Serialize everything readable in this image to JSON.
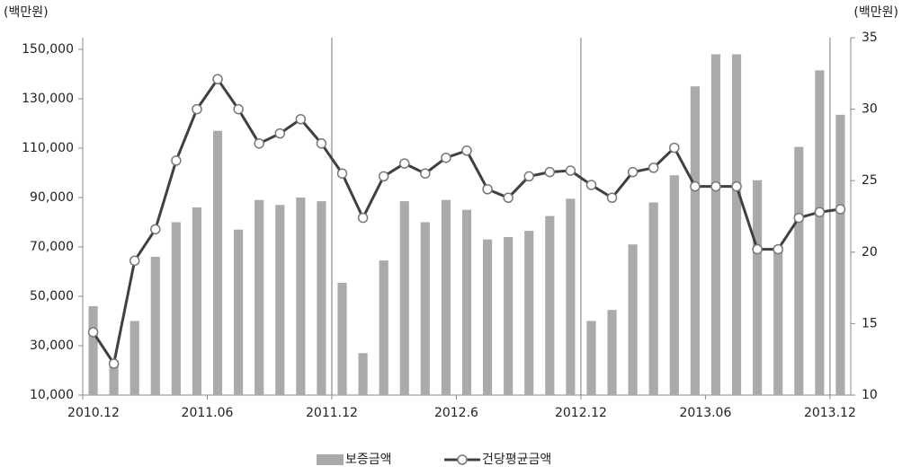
{
  "chart_data": {
    "type": "bar-line",
    "y_label": "(백만원)",
    "y2_label": "(백만원)",
    "categories": [
      "2010.12",
      null,
      null,
      null,
      null,
      null,
      "2011.06",
      null,
      null,
      null,
      null,
      null,
      "2011.12",
      null,
      null,
      null,
      null,
      null,
      "2012.6",
      null,
      null,
      null,
      null,
      null,
      "2012.12",
      null,
      null,
      null,
      null,
      null,
      "2013.06",
      null,
      null,
      null,
      null,
      null,
      "2013.12"
    ],
    "series": [
      {
        "name": "보증금액",
        "type": "bar",
        "color": "#aaaaaa",
        "values": [
          46000,
          24000,
          40000,
          66000,
          80000,
          86000,
          117000,
          77000,
          89000,
          87000,
          90000,
          88500,
          55500,
          27000,
          64500,
          88500,
          80000,
          89000,
          85000,
          73000,
          74000,
          76500,
          82500,
          89500,
          40000,
          44500,
          71000,
          88000,
          99000,
          135000,
          148000,
          148000,
          97000,
          68000,
          110500,
          141500,
          123500
        ]
      },
      {
        "name": "건당평균금액",
        "type": "line",
        "axis": "y2",
        "color": "#404040",
        "values": [
          14.4,
          12.2,
          19.4,
          21.6,
          26.4,
          30.0,
          32.1,
          30.0,
          27.6,
          28.3,
          29.3,
          27.6,
          25.5,
          22.4,
          25.3,
          26.2,
          25.5,
          26.6,
          27.1,
          24.4,
          23.8,
          25.3,
          25.6,
          25.7,
          24.7,
          23.8,
          25.6,
          25.9,
          27.3,
          24.6,
          24.6,
          24.6,
          20.2,
          20.2,
          22.4,
          22.8,
          23.0
        ]
      }
    ],
    "ylim": [
      10000,
      154700
    ],
    "yticks": [
      {
        "value": 10000,
        "label": "10,000"
      },
      {
        "value": 30000,
        "label": "30,000"
      },
      {
        "value": 50000,
        "label": "50,000"
      },
      {
        "value": 70000,
        "label": "70,000"
      },
      {
        "value": 90000,
        "label": "90,000"
      },
      {
        "value": 110000,
        "label": "110,000"
      },
      {
        "value": 130000,
        "label": "130,000"
      },
      {
        "value": 150000,
        "label": "150,000"
      }
    ],
    "y2lim": [
      10,
      35
    ],
    "y2ticks": [
      10,
      15,
      20,
      25,
      30,
      35
    ],
    "legend": "bottom"
  }
}
